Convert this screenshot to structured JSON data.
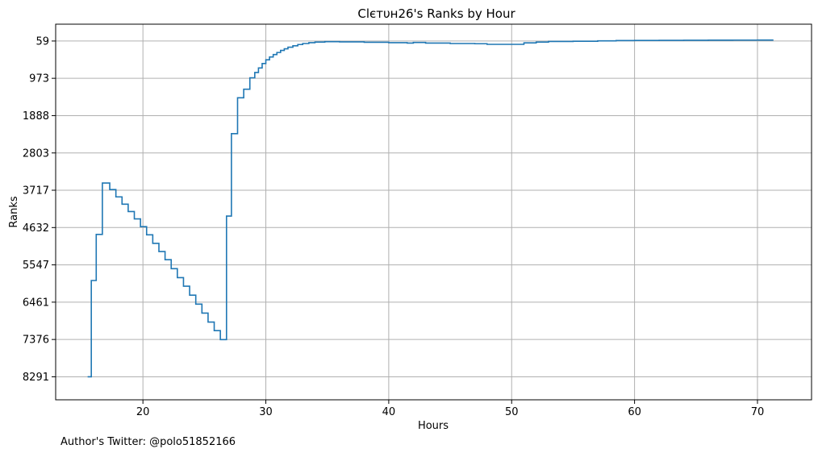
{
  "footer_text": "Author's Twitter: @polo51852166",
  "chart_data": {
    "type": "line",
    "step": true,
    "title": "Clєтυн26's Ranks by Hour",
    "xlabel": "Hours",
    "ylabel": "Ranks",
    "y_inverted": true,
    "grid": true,
    "line_color": "#1f77b4",
    "xlim": [
      12.9,
      74.4
    ],
    "ylim": [
      8855,
      -354
    ],
    "x_ticks": [
      20,
      30,
      40,
      50,
      60,
      70
    ],
    "x_tick_labels": [
      "20",
      "30",
      "40",
      "50",
      "60",
      "70"
    ],
    "y_ticks": [
      59,
      973,
      1888,
      2803,
      3717,
      4632,
      5547,
      6461,
      7376,
      8291
    ],
    "y_tick_labels": [
      "59",
      "973",
      "1888",
      "2803",
      "3717",
      "4632",
      "5547",
      "6461",
      "7376",
      "8291"
    ],
    "series": [
      {
        "x": [
          15.5,
          15.8,
          16.2,
          16.7,
          17.3,
          17.8,
          18.3,
          18.8,
          19.3,
          19.8,
          20.3,
          20.8,
          21.3,
          21.8,
          22.3,
          22.8,
          23.3,
          23.8,
          24.3,
          24.8,
          25.3,
          25.8,
          26.3,
          26.8,
          27.2,
          27.7,
          28.2,
          28.7,
          29.1,
          29.4,
          29.7,
          30.0,
          30.3,
          30.6,
          30.9,
          31.2,
          31.5,
          31.8,
          32.2,
          32.6,
          33.0,
          33.5,
          34.0,
          34.8,
          36.0,
          38.0,
          40.0,
          41.5,
          42.0,
          43.0,
          45.0,
          47.0,
          48.0,
          50.0,
          51.0,
          52.0,
          53.0,
          55.0,
          57.0,
          58.5,
          60.0,
          62.0,
          64.0,
          66.0,
          68.0,
          70.0,
          71.3
        ],
        "y": [
          8291,
          5930,
          4800,
          3540,
          3700,
          3880,
          4060,
          4240,
          4420,
          4610,
          4810,
          5020,
          5220,
          5420,
          5640,
          5860,
          6070,
          6290,
          6510,
          6730,
          6950,
          7160,
          7380,
          4350,
          2330,
          1450,
          1240,
          960,
          830,
          720,
          610,
          520,
          450,
          390,
          340,
          290,
          250,
          210,
          175,
          145,
          120,
          100,
          85,
          75,
          80,
          90,
          100,
          110,
          95,
          110,
          120,
          125,
          140,
          140,
          105,
          85,
          70,
          65,
          55,
          48,
          45,
          42,
          40,
          38,
          36,
          35,
          35
        ]
      }
    ]
  }
}
